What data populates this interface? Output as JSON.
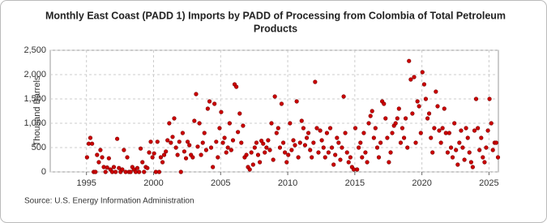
{
  "chart_data": {
    "type": "scatter",
    "title": [
      "Monthly East Coast (PADD 1) Imports by PADD of Processing from Colombia of Total Petroleum",
      "Products"
    ],
    "y_label": "Thousand Barrels",
    "source": "Source: U.S. Energy Information Administration",
    "xlim": [
      1992.3,
      2025.7
    ],
    "xticks": [
      1995,
      2000,
      2005,
      2010,
      2015,
      2020,
      2025
    ],
    "ylim": [
      0,
      2500
    ],
    "yticks": [
      0,
      500,
      {
        "value": 1000,
        "label": "1,000"
      },
      {
        "value": 1500,
        "label": "1,500"
      },
      {
        "value": 2000,
        "label": "2,000"
      },
      {
        "value": 2500,
        "label": "2,500"
      }
    ],
    "grid": true,
    "color": "#cc0000",
    "x": [
      1995.04,
      1995.17,
      1995.29,
      1995.42,
      1995.54,
      1995.67,
      1995.79,
      1995.92,
      1996.04,
      1996.17,
      1996.29,
      1996.42,
      1996.54,
      1996.67,
      1996.79,
      1996.92,
      1997.04,
      1997.17,
      1997.29,
      1997.42,
      1997.54,
      1997.67,
      1997.79,
      1997.92,
      1998.04,
      1998.17,
      1998.29,
      1998.42,
      1998.54,
      1998.67,
      1998.79,
      1998.92,
      1999.04,
      1999.17,
      1999.29,
      1999.42,
      1999.54,
      1999.67,
      1999.79,
      1999.92,
      2000.04,
      2000.17,
      2000.29,
      2000.42,
      2000.54,
      2000.67,
      2000.79,
      2000.92,
      2001.04,
      2001.17,
      2001.29,
      2001.42,
      2001.54,
      2001.67,
      2001.79,
      2001.92,
      2002.04,
      2002.17,
      2002.29,
      2002.42,
      2002.54,
      2002.67,
      2002.79,
      2002.92,
      2003.04,
      2003.17,
      2003.29,
      2003.42,
      2003.54,
      2003.67,
      2003.79,
      2003.92,
      2004.04,
      2004.17,
      2004.29,
      2004.42,
      2004.54,
      2004.67,
      2004.79,
      2004.92,
      2005.04,
      2005.17,
      2005.29,
      2005.42,
      2005.54,
      2005.67,
      2005.79,
      2005.92,
      2006.04,
      2006.17,
      2006.29,
      2006.42,
      2006.54,
      2006.67,
      2006.79,
      2006.92,
      2007.04,
      2007.17,
      2007.29,
      2007.42,
      2007.54,
      2007.67,
      2007.79,
      2007.92,
      2008.04,
      2008.17,
      2008.29,
      2008.42,
      2008.54,
      2008.67,
      2008.79,
      2008.92,
      2009.04,
      2009.17,
      2009.29,
      2009.42,
      2009.54,
      2009.67,
      2009.79,
      2009.92,
      2010.04,
      2010.17,
      2010.29,
      2010.42,
      2010.54,
      2010.67,
      2010.79,
      2010.92,
      2011.04,
      2011.17,
      2011.29,
      2011.42,
      2011.54,
      2011.67,
      2011.79,
      2011.92,
      2012.04,
      2012.17,
      2012.29,
      2012.42,
      2012.54,
      2012.67,
      2012.79,
      2012.92,
      2013.04,
      2013.17,
      2013.29,
      2013.42,
      2013.54,
      2013.67,
      2013.79,
      2013.92,
      2014.04,
      2014.17,
      2014.29,
      2014.42,
      2014.54,
      2014.67,
      2014.79,
      2014.92,
      2015.04,
      2015.17,
      2015.29,
      2015.42,
      2015.54,
      2015.67,
      2015.79,
      2015.92,
      2016.04,
      2016.17,
      2016.29,
      2016.42,
      2016.54,
      2016.67,
      2016.79,
      2016.92,
      2017.04,
      2017.17,
      2017.29,
      2017.42,
      2017.54,
      2017.67,
      2017.79,
      2017.92,
      2018.04,
      2018.17,
      2018.29,
      2018.42,
      2018.54,
      2018.67,
      2018.79,
      2018.92,
      2019.04,
      2019.17,
      2019.29,
      2019.42,
      2019.54,
      2019.67,
      2019.79,
      2019.92,
      2020.04,
      2020.17,
      2020.29,
      2020.42,
      2020.54,
      2020.67,
      2020.79,
      2020.92,
      2021.04,
      2021.17,
      2021.29,
      2021.42,
      2021.54,
      2021.67,
      2021.79,
      2021.92,
      2022.04,
      2022.17,
      2022.29,
      2022.42,
      2022.54,
      2022.67,
      2022.79,
      2022.92,
      2023.04,
      2023.17,
      2023.29,
      2023.42,
      2023.54,
      2023.67,
      2023.79,
      2023.92,
      2024.04,
      2024.17,
      2024.29,
      2024.42,
      2024.54,
      2024.67,
      2024.79,
      2024.92,
      2025.04,
      2025.17,
      2025.29,
      2025.42,
      2025.54,
      2025.67
    ],
    "values": [
      300,
      580,
      700,
      580,
      0,
      0,
      350,
      200,
      450,
      300,
      100,
      0,
      90,
      280,
      50,
      0,
      100,
      0,
      680,
      80,
      0,
      50,
      450,
      0,
      300,
      0,
      0,
      100,
      50,
      0,
      80,
      0,
      480,
      200,
      0,
      100,
      80,
      400,
      620,
      300,
      380,
      0,
      620,
      0,
      300,
      200,
      350,
      420,
      650,
      1000,
      600,
      720,
      1100,
      500,
      350,
      620,
      0,
      800,
      420,
      280,
      620,
      550,
      350,
      300,
      1050,
      1600,
      520,
      1000,
      350,
      600,
      800,
      450,
      1300,
      1450,
      500,
      100,
      1400,
      620,
      300,
      900,
      1230,
      600,
      700,
      400,
      500,
      1000,
      450,
      650,
      1800,
      1750,
      820,
      1200,
      600,
      950,
      300,
      350,
      100,
      50,
      400,
      150,
      500,
      600,
      350,
      200,
      640,
      580,
      400,
      500,
      650,
      450,
      1000,
      250,
      1550,
      800,
      900,
      500,
      1400,
      600,
      400,
      200,
      350,
      1000,
      450,
      650,
      550,
      1450,
      300,
      600,
      1050,
      900,
      550,
      700,
      800,
      450,
      300,
      600,
      1850,
      900,
      400,
      850,
      650,
      500,
      300,
      800,
      400,
      900,
      500,
      150,
      350,
      700,
      600,
      250,
      500,
      1550,
      800,
      400,
      200,
      300,
      100,
      50,
      900,
      50,
      500,
      600,
      300,
      800,
      400,
      200,
      1000,
      1150,
      1250,
      700,
      900,
      500,
      300,
      600,
      1450,
      1400,
      1100,
      700,
      200,
      400,
      800,
      950,
      1000,
      1100,
      1300,
      600,
      900,
      700,
      1100,
      500,
      2280,
      1900,
      1200,
      1950,
      600,
      1450,
      1350,
      800,
      2050,
      1800,
      1500,
      1100,
      1200,
      700,
      400,
      900,
      1650,
      1350,
      850,
      600,
      900,
      1300,
      800,
      400,
      800,
      500,
      300,
      1000,
      450,
      150,
      600,
      850,
      500,
      250,
      900,
      700,
      400,
      200,
      100,
      850,
      1500,
      900,
      450,
      700,
      300,
      200,
      500,
      850,
      1500,
      1000,
      450,
      600,
      600,
      300
    ]
  }
}
